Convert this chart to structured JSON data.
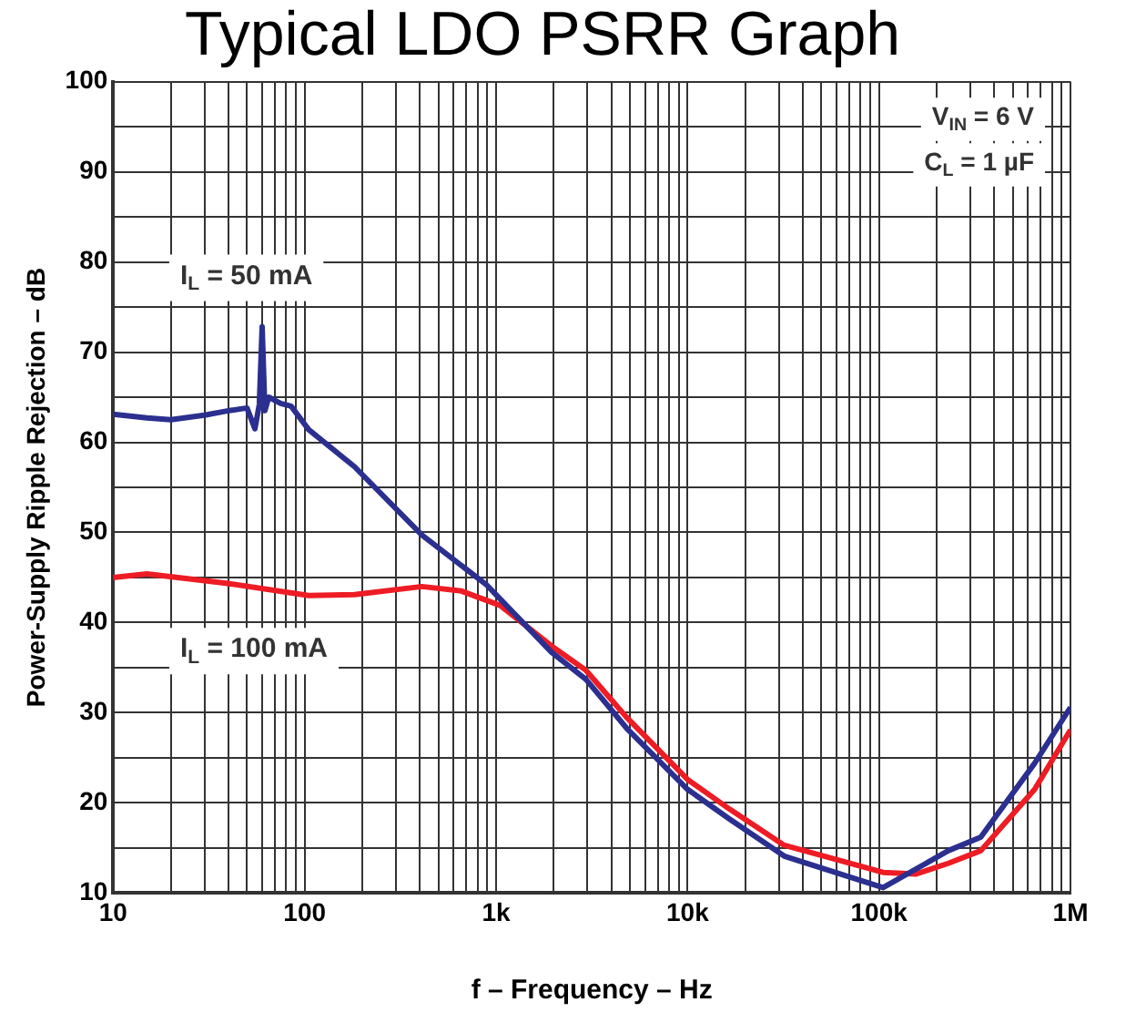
{
  "chart_data": {
    "type": "line",
    "title": "Typical LDO PSRR Graph",
    "xlabel": "f – Frequency – Hz",
    "ylabel": "Power-Supply Ripple Rejection – dB",
    "log": "x",
    "grid": true,
    "legend": false,
    "marker": "none",
    "line_style": "solid",
    "xlim": [
      10,
      1000000
    ],
    "ylim": [
      10,
      100
    ],
    "xticks": [
      10,
      {
        "value": 20,
        "label": null
      },
      {
        "value": 30,
        "label": null
      },
      {
        "value": 40,
        "label": null
      },
      {
        "value": 50,
        "label": null
      },
      {
        "value": 60,
        "label": null
      },
      {
        "value": 70,
        "label": null
      },
      {
        "value": 80,
        "label": null
      },
      {
        "value": 90,
        "label": null
      },
      100,
      {
        "value": 200,
        "label": null
      },
      {
        "value": 300,
        "label": null
      },
      {
        "value": 400,
        "label": null
      },
      {
        "value": 500,
        "label": null
      },
      {
        "value": 600,
        "label": null
      },
      {
        "value": 700,
        "label": null
      },
      {
        "value": 800,
        "label": null
      },
      {
        "value": 900,
        "label": null
      },
      {
        "value": 1000,
        "label": "1k"
      },
      {
        "value": 2000,
        "label": null
      },
      {
        "value": 3000,
        "label": null
      },
      {
        "value": 4000,
        "label": null
      },
      {
        "value": 5000,
        "label": null
      },
      {
        "value": 6000,
        "label": null
      },
      {
        "value": 7000,
        "label": null
      },
      {
        "value": 8000,
        "label": null
      },
      {
        "value": 9000,
        "label": null
      },
      {
        "value": 10000,
        "label": "10k"
      },
      {
        "value": 20000,
        "label": null
      },
      {
        "value": 30000,
        "label": null
      },
      {
        "value": 40000,
        "label": null
      },
      {
        "value": 50000,
        "label": null
      },
      {
        "value": 60000,
        "label": null
      },
      {
        "value": 70000,
        "label": null
      },
      {
        "value": 80000,
        "label": null
      },
      {
        "value": 90000,
        "label": null
      },
      {
        "value": 100000,
        "label": "100k"
      },
      {
        "value": 200000,
        "label": null
      },
      {
        "value": 300000,
        "label": null
      },
      {
        "value": 400000,
        "label": null
      },
      {
        "value": 500000,
        "label": null
      },
      {
        "value": 600000,
        "label": null
      },
      {
        "value": 700000,
        "label": null
      },
      {
        "value": 800000,
        "label": null
      },
      {
        "value": 900000,
        "label": null
      },
      {
        "value": 1000000,
        "label": "1M"
      }
    ],
    "yticks": [
      10,
      {
        "value": 15,
        "label": null
      },
      20,
      {
        "value": 25,
        "label": null
      },
      30,
      {
        "value": 35,
        "label": null
      },
      40,
      {
        "value": 45,
        "label": null
      },
      50,
      {
        "value": 55,
        "label": null
      },
      60,
      {
        "value": 65,
        "label": null
      },
      70,
      {
        "value": 75,
        "label": null
      },
      80,
      {
        "value": 85,
        "label": null
      },
      90,
      {
        "value": 95,
        "label": null
      },
      100
    ],
    "annotations": [
      "V$_{IN}$ = 6 V",
      "C$_{L}$ = 1 µF"
    ],
    "series": [
      {
        "name": "I$_{L}$ = 50 mA",
        "color": "#2b2f8f",
        "x": [
          10,
          15,
          20,
          30,
          40,
          50,
          55,
          58,
          60,
          62,
          65,
          75,
          85,
          105,
          182,
          410,
          890,
          1950,
          2950,
          4800,
          10000,
          16600,
          32000,
          105000,
          230000,
          340000,
          650000,
          1000000
        ],
        "values": [
          63.1,
          62.7,
          62.5,
          63,
          63.5,
          63.8,
          61.5,
          64.2,
          72.8,
          63.5,
          65,
          64.3,
          64,
          61.4,
          57.3,
          49.7,
          44.2,
          36.7,
          33.7,
          28.3,
          21.5,
          18.2,
          14.1,
          10.6,
          14.7,
          16.2,
          24.4,
          30.6
        ]
      },
      {
        "name": "I$_{L}$ = 100 mA",
        "color": "#ee1c24",
        "x": [
          10,
          15,
          38,
          105,
          182,
          410,
          660,
          1050,
          1950,
          2950,
          4800,
          10000,
          16600,
          32000,
          105000,
          155000,
          230000,
          340000,
          650000,
          1000000
        ],
        "values": [
          45,
          45.4,
          44.4,
          43,
          43.1,
          44,
          43.5,
          41.9,
          37.4,
          34.7,
          29.5,
          22.6,
          19.3,
          15.3,
          12.3,
          12.1,
          13.3,
          14.7,
          21.5,
          28.1
        ]
      }
    ]
  }
}
